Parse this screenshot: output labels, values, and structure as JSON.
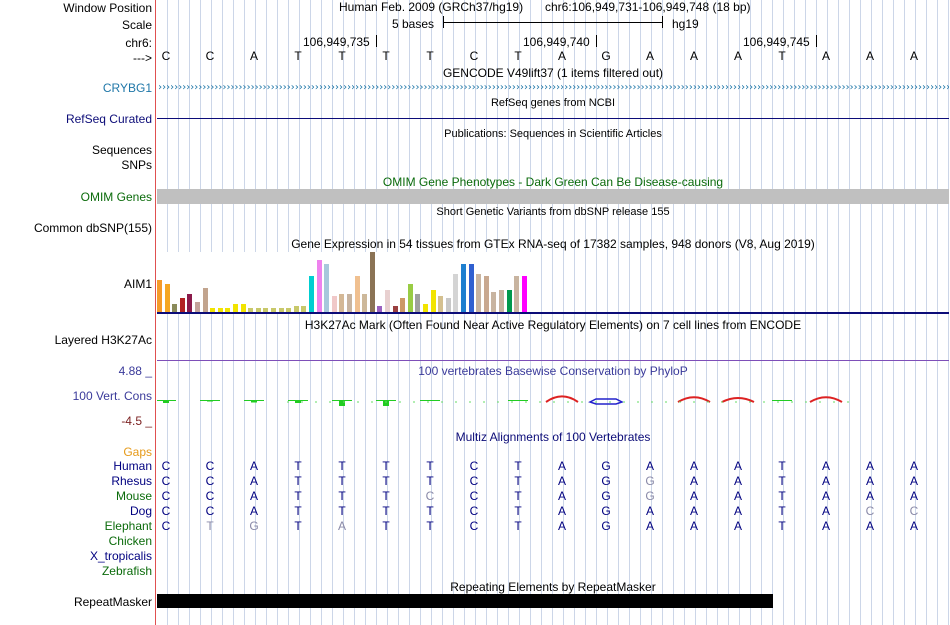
{
  "header": {
    "window_position_label": "Window Position",
    "assembly_text": "Human Feb. 2009 (GRCh37/hg19)",
    "position_text": "chr6:106,949,731-106,949,748 (18 bp)",
    "scale_label": "Scale",
    "scale_bar_text": "5 bases",
    "scale_db": "hg19",
    "chrom_label": "chr6:",
    "strand_label": "--->",
    "coords": [
      "106,949,735",
      "106,949,740",
      "106,949,745"
    ]
  },
  "sequence": [
    "C",
    "C",
    "A",
    "T",
    "T",
    "T",
    "T",
    "C",
    "T",
    "A",
    "G",
    "A",
    "A",
    "A",
    "T",
    "A",
    "A",
    "A"
  ],
  "tracks": {
    "gencode": {
      "title": "GENCODE V49lift37 (1 items filtered out)",
      "label": "CRYBG1",
      "color": "#1f77a8"
    },
    "refseq": {
      "title": "RefSeq genes from NCBI",
      "label": "RefSeq Curated",
      "color": "#0c0c78"
    },
    "publications": {
      "title": "Publications: Sequences in Scientific Articles",
      "label": "Sequences"
    },
    "snps_label": "SNPs",
    "omim": {
      "title": "OMIM Gene Phenotypes - Dark Green Can Be Disease-causing",
      "label": "OMIM Genes",
      "color": "#0b6b0b"
    },
    "dbsnp": {
      "title": "Short Genetic Variants from dbSNP release 155",
      "label": "Common dbSNP(155)"
    },
    "gtex": {
      "title": "Gene Expression in 54 tissues from GTEx RNA-seq of 17382 samples, 948 donors (V8, Aug 2019)",
      "label": "AIM1"
    },
    "h3k27ac": {
      "title": "H3K27Ac Mark (Often Found Near Active Regulatory Elements) on 7 cell lines from ENCODE",
      "label": "Layered H3K27Ac"
    },
    "cons": {
      "title": "100 vertebrates Basewise Conservation by PhyloP",
      "label": "100 Vert. Cons",
      "max": "4.88 _",
      "min": "-4.5 _",
      "color": "#3a3a9a",
      "min_color": "#7a1f1f"
    },
    "multiz": {
      "title": "Multiz Alignments of 100 Vertebrates",
      "gaps_label": "Gaps",
      "species": [
        {
          "name": "Human",
          "color": "#000080",
          "bases": [
            "C",
            "C",
            "A",
            "T",
            "T",
            "T",
            "T",
            "C",
            "T",
            "A",
            "G",
            "A",
            "A",
            "A",
            "T",
            "A",
            "A",
            "A"
          ],
          "grey": []
        },
        {
          "name": "Rhesus",
          "color": "#000080",
          "bases": [
            "C",
            "C",
            "A",
            "T",
            "T",
            "T",
            "T",
            "C",
            "T",
            "A",
            "G",
            "G",
            "A",
            "A",
            "T",
            "A",
            "A",
            "A"
          ],
          "grey": [
            11
          ]
        },
        {
          "name": "Mouse",
          "color": "#0b6b0b",
          "bases": [
            "C",
            "C",
            "A",
            "T",
            "T",
            "T",
            "C",
            "C",
            "T",
            "A",
            "G",
            "G",
            "A",
            "A",
            "T",
            "A",
            "A",
            "A"
          ],
          "grey": [
            6,
            11
          ]
        },
        {
          "name": "Dog",
          "color": "#000080",
          "bases": [
            "C",
            "C",
            "A",
            "T",
            "T",
            "T",
            "T",
            "C",
            "T",
            "A",
            "G",
            "A",
            "A",
            "A",
            "T",
            "A",
            "C",
            "C"
          ],
          "grey": [
            16,
            17
          ]
        },
        {
          "name": "Elephant",
          "color": "#0b6b0b",
          "bases": [
            "C",
            "T",
            "G",
            "T",
            "A",
            "T",
            "T",
            "C",
            "T",
            "A",
            "G",
            "A",
            "A",
            "A",
            "T",
            "A",
            "A",
            "A"
          ],
          "grey": [
            1,
            2,
            4
          ]
        },
        {
          "name": "Chicken",
          "color": "#0b6b0b",
          "bases": [],
          "grey": []
        },
        {
          "name": "X_tropicalis",
          "color": "#000080",
          "bases": [],
          "grey": []
        },
        {
          "name": "Zebrafish",
          "color": "#0b6b0b",
          "bases": [],
          "grey": []
        }
      ]
    },
    "repeatmasker": {
      "title": "Repeating Elements by RepeatMasker",
      "label": "RepeatMasker"
    }
  },
  "gtex_bars": [
    {
      "v": 32,
      "c": "#f59a2a"
    },
    {
      "v": 28,
      "c": "#f5a623"
    },
    {
      "v": 8,
      "c": "#8b8b5a"
    },
    {
      "v": 14,
      "c": "#b22222"
    },
    {
      "v": 18,
      "c": "#8b1a4a"
    },
    {
      "v": 10,
      "c": "#c3a39a"
    },
    {
      "v": 24,
      "c": "#c2a48e"
    },
    {
      "v": 4,
      "c": "#f2e400"
    },
    {
      "v": 4,
      "c": "#f2e400"
    },
    {
      "v": 4,
      "c": "#f2e400"
    },
    {
      "v": 8,
      "c": "#f2e400"
    },
    {
      "v": 8,
      "c": "#f2e400"
    },
    {
      "v": 4,
      "c": "#c8c86a"
    },
    {
      "v": 4,
      "c": "#c8c86a"
    },
    {
      "v": 4,
      "c": "#c8c86a"
    },
    {
      "v": 4,
      "c": "#c8c86a"
    },
    {
      "v": 4,
      "c": "#c8c86a"
    },
    {
      "v": 4,
      "c": "#c8c86a"
    },
    {
      "v": 6,
      "c": "#c8c86a"
    },
    {
      "v": 6,
      "c": "#c8c86a"
    },
    {
      "v": 36,
      "c": "#00ced1"
    },
    {
      "v": 52,
      "c": "#ee82ee"
    },
    {
      "v": 48,
      "c": "#a8c8dc"
    },
    {
      "v": 16,
      "c": "#f0c8c8"
    },
    {
      "v": 18,
      "c": "#d4b896"
    },
    {
      "v": 18,
      "c": "#c8b4a0"
    },
    {
      "v": 36,
      "c": "#f0c090"
    },
    {
      "v": 18,
      "c": "#cdb89a"
    },
    {
      "v": 60,
      "c": "#8b7355"
    },
    {
      "v": 6,
      "c": "#9a60c0"
    },
    {
      "v": 22,
      "c": "#e8d0d0"
    },
    {
      "v": 6,
      "c": "#9a4040"
    },
    {
      "v": 14,
      "c": "#cc9966"
    },
    {
      "v": 28,
      "c": "#99cc44"
    },
    {
      "v": 18,
      "c": "#a0a0a0"
    },
    {
      "v": 8,
      "c": "#f2e400"
    },
    {
      "v": 22,
      "c": "#f2e400"
    },
    {
      "v": 16,
      "c": "#d4c090"
    },
    {
      "v": 14,
      "c": "#c8c8c8"
    },
    {
      "v": 38,
      "c": "#d4d4d4"
    },
    {
      "v": 48,
      "c": "#1e7fcf"
    },
    {
      "v": 48,
      "c": "#3060d0"
    },
    {
      "v": 38,
      "c": "#c8b4a0"
    },
    {
      "v": 36,
      "c": "#c8a890"
    },
    {
      "v": 20,
      "c": "#c8b4a0"
    },
    {
      "v": 22,
      "c": "#c8b4a0"
    },
    {
      "v": 22,
      "c": "#00994c"
    },
    {
      "v": 36,
      "c": "#c8b4a0"
    },
    {
      "v": 36,
      "c": "#ff00ff"
    }
  ],
  "phylop": [
    0.3,
    0.15,
    0.25,
    0.3,
    0.6,
    0.6,
    0.1,
    0,
    0.1,
    -0.7,
    -0.5,
    0,
    -0.6,
    -0.5,
    0.05,
    -0.6,
    0,
    0
  ]
}
